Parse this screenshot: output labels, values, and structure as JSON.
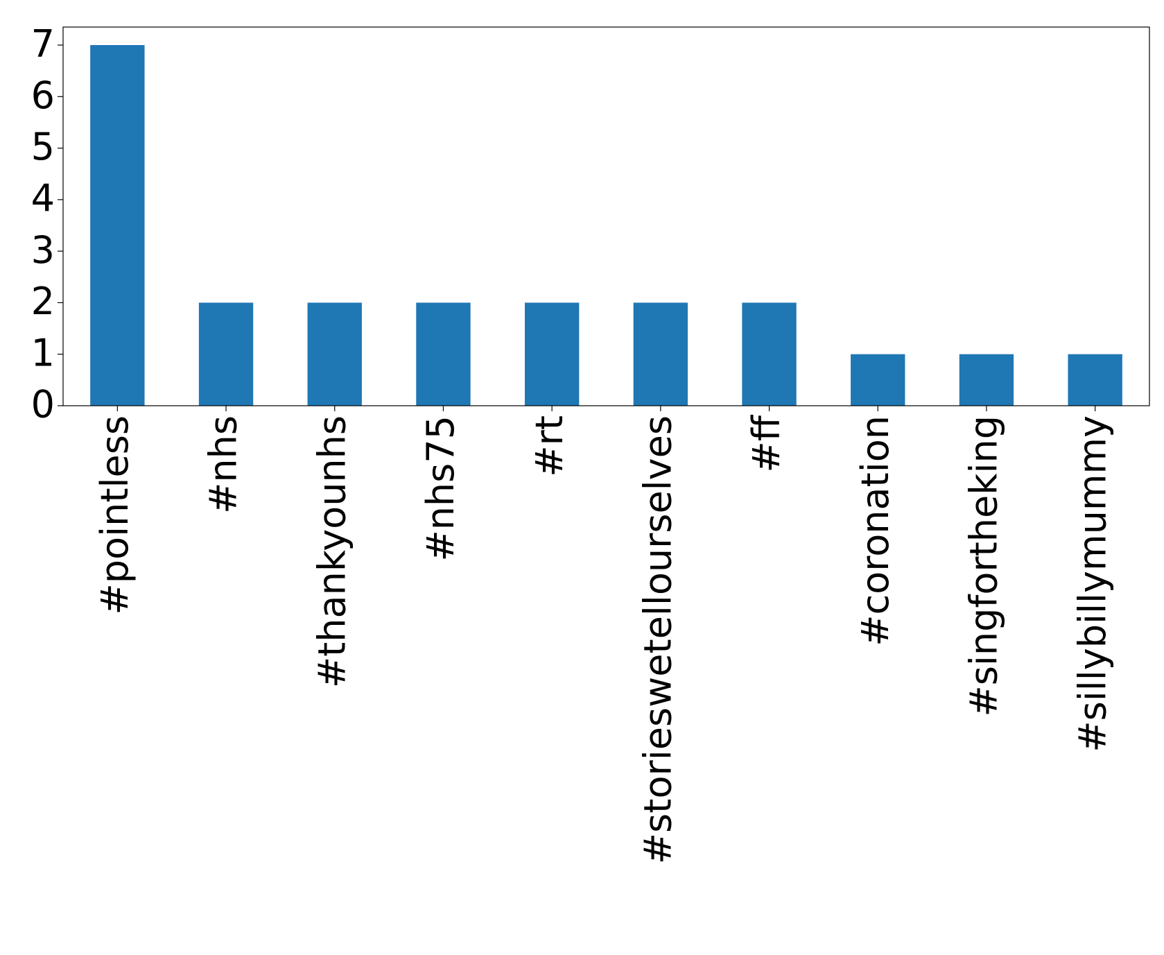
{
  "chart_data": {
    "type": "bar",
    "categories": [
      "#pointless",
      "#nhs",
      "#thankyounhs",
      "#nhs75",
      "#rt",
      "#storieswetellourselves",
      "#ff",
      "#coronation",
      "#singfortheking",
      "#sillybillymummy"
    ],
    "values": [
      7,
      2,
      2,
      2,
      2,
      2,
      2,
      1,
      1,
      1
    ],
    "color": "#1f77b4",
    "ylim": [
      0,
      7.35
    ],
    "yticks": [
      0,
      1,
      2,
      3,
      4,
      5,
      6,
      7
    ],
    "grid": false
  }
}
